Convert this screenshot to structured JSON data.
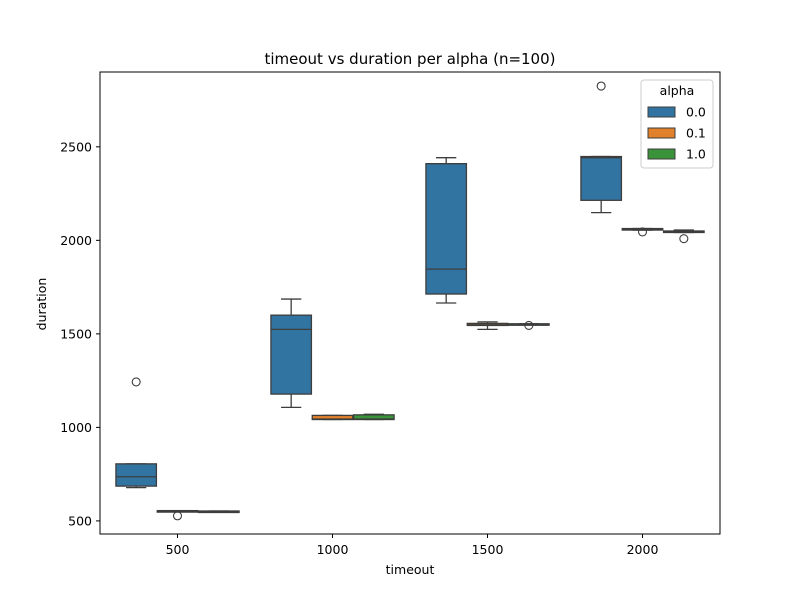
{
  "chart_data": {
    "type": "box",
    "title": "timeout vs duration per alpha (n=100)",
    "xlabel": "timeout",
    "ylabel": "duration",
    "categories": [
      "500",
      "1000",
      "1500",
      "2000"
    ],
    "x_ticks": [
      "500",
      "1000",
      "1500",
      "2000"
    ],
    "y_ticks": [
      "500",
      "1000",
      "1500",
      "2000",
      "2500"
    ],
    "ylim": [
      430,
      2900
    ],
    "grid": false,
    "legend": {
      "title": "alpha",
      "position": "top-right"
    },
    "series": [
      {
        "name": "0.0",
        "color": "#3274a1",
        "boxes": [
          {
            "category": "500",
            "whislo": 678,
            "q1": 686,
            "med": 736,
            "q3": 805,
            "whishi": 805,
            "fliers": [
              1243
            ]
          },
          {
            "category": "1000",
            "whislo": 1107,
            "q1": 1178,
            "med": 1524,
            "q3": 1600,
            "whishi": 1686,
            "fliers": []
          },
          {
            "category": "1500",
            "whislo": 1665,
            "q1": 1713,
            "med": 1846,
            "q3": 2410,
            "whishi": 2442,
            "fliers": []
          },
          {
            "category": "2000",
            "whislo": 2148,
            "q1": 2214,
            "med": 2442,
            "q3": 2448,
            "whishi": 2448,
            "fliers": [
              2825
            ]
          }
        ]
      },
      {
        "name": "0.1",
        "color": "#e1812c",
        "boxes": [
          {
            "category": "500",
            "whislo": 553,
            "q1": 553,
            "med": 553,
            "q3": 555,
            "whishi": 555,
            "fliers": [
              527
            ]
          },
          {
            "category": "1000",
            "whislo": 1042,
            "q1": 1042,
            "med": 1045,
            "q3": 1064,
            "whishi": 1064,
            "fliers": []
          },
          {
            "category": "1500",
            "whislo": 1524,
            "q1": 1545,
            "med": 1552,
            "q3": 1556,
            "whishi": 1564,
            "fliers": []
          },
          {
            "category": "2000",
            "whislo": 2055,
            "q1": 2055,
            "med": 2058,
            "q3": 2063,
            "whishi": 2063,
            "fliers": [
              2045
            ]
          }
        ]
      },
      {
        "name": "1.0",
        "color": "#3a923a",
        "boxes": [
          {
            "category": "500",
            "whislo": 549,
            "q1": 549,
            "med": 551,
            "q3": 553,
            "whishi": 553,
            "fliers": []
          },
          {
            "category": "1000",
            "whislo": 1042,
            "q1": 1042,
            "med": 1045,
            "q3": 1067,
            "whishi": 1070,
            "fliers": []
          },
          {
            "category": "1500",
            "whislo": 1550,
            "q1": 1550,
            "med": 1552,
            "q3": 1554,
            "whishi": 1554,
            "fliers": [
              1545
            ]
          },
          {
            "category": "2000",
            "whislo": 2042,
            "q1": 2042,
            "med": 2045,
            "q3": 2050,
            "whishi": 2055,
            "fliers": [
              2009
            ]
          }
        ]
      }
    ]
  }
}
